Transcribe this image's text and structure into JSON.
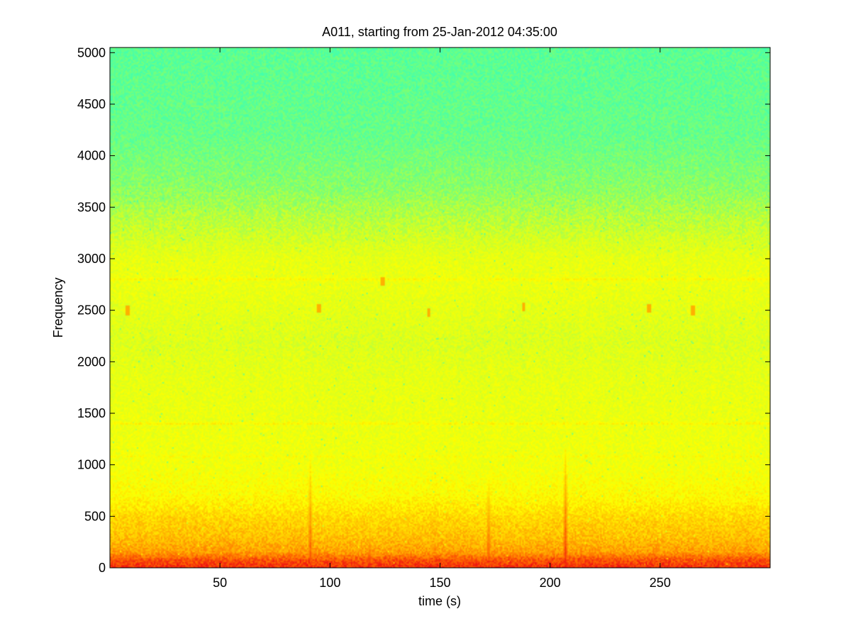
{
  "chart_data": {
    "type": "heatmap",
    "title": "A011, starting from 25-Jan-2012 04:35:00",
    "xlabel": "time (s)",
    "ylabel": "Frequency",
    "xlim": [
      0,
      300
    ],
    "ylim": [
      0,
      5050
    ],
    "x_ticks": [
      50,
      100,
      150,
      200,
      250
    ],
    "y_ticks": [
      0,
      500,
      1000,
      1500,
      2000,
      2500,
      3000,
      3500,
      4000,
      4500,
      5000
    ],
    "grid": false,
    "colormap": "jet (upper portion: cyan-green to yellow to red)",
    "colormap_stops": [
      "#40ffb0",
      "#80ff70",
      "#d8ff20",
      "#ffff00",
      "#ffc000",
      "#ff7000",
      "#ee1010"
    ],
    "intensity_profile": {
      "frequency": [
        0,
        80,
        150,
        300,
        500,
        700,
        1000,
        1400,
        1800,
        2200,
        2600,
        2800,
        3000,
        3300,
        3700,
        4200,
        5050
      ],
      "level": [
        0.95,
        0.88,
        0.74,
        0.66,
        0.6,
        0.5,
        0.44,
        0.42,
        0.4,
        0.36,
        0.4,
        0.42,
        0.4,
        0.3,
        0.18,
        0.1,
        0.07
      ]
    },
    "horizontal_bands": [
      {
        "frequency": 1400,
        "level": 0.52
      },
      {
        "frequency": 2800,
        "level": 0.5
      },
      {
        "frequency": 1080,
        "level": 0.48
      }
    ],
    "transient_events": [
      {
        "time": 5,
        "level": 0.95,
        "max_frequency": 130
      },
      {
        "time": 20,
        "level": 0.92,
        "max_frequency": 120
      },
      {
        "time": 35,
        "level": 0.9,
        "max_frequency": 110
      },
      {
        "time": 46,
        "level": 0.92,
        "max_frequency": 130
      },
      {
        "time": 68,
        "level": 0.9,
        "max_frequency": 120
      },
      {
        "time": 88,
        "level": 0.95,
        "max_frequency": 200
      },
      {
        "time": 91,
        "level": 0.93,
        "max_frequency": 1100
      },
      {
        "time": 95,
        "level": 0.92,
        "max_frequency": 250
      },
      {
        "time": 103,
        "level": 0.9,
        "max_frequency": 200
      },
      {
        "time": 110,
        "level": 0.92,
        "max_frequency": 150
      },
      {
        "time": 118,
        "level": 1.0,
        "max_frequency": 420
      },
      {
        "time": 135,
        "level": 0.92,
        "max_frequency": 120
      },
      {
        "time": 146,
        "level": 0.92,
        "max_frequency": 140
      },
      {
        "time": 172,
        "level": 0.95,
        "max_frequency": 900
      },
      {
        "time": 182,
        "level": 0.92,
        "max_frequency": 150
      },
      {
        "time": 195,
        "level": 0.92,
        "max_frequency": 150
      },
      {
        "time": 207,
        "level": 0.98,
        "max_frequency": 1150
      },
      {
        "time": 210,
        "level": 0.95,
        "max_frequency": 350
      },
      {
        "time": 216,
        "level": 0.93,
        "max_frequency": 200
      },
      {
        "time": 222,
        "level": 0.95,
        "max_frequency": 250
      },
      {
        "time": 228,
        "level": 0.92,
        "max_frequency": 180
      },
      {
        "time": 235,
        "level": 0.95,
        "max_frequency": 250
      },
      {
        "time": 245,
        "level": 0.93,
        "max_frequency": 200
      },
      {
        "time": 252,
        "level": 0.97,
        "max_frequency": 300
      },
      {
        "time": 256,
        "level": 0.95,
        "max_frequency": 250
      },
      {
        "time": 263,
        "level": 0.92,
        "max_frequency": 160
      },
      {
        "time": 290,
        "level": 0.92,
        "max_frequency": 200
      }
    ],
    "highlight_spots": [
      {
        "time": 8,
        "frequency": 2500
      },
      {
        "time": 95,
        "frequency": 2520
      },
      {
        "time": 145,
        "frequency": 2480
      },
      {
        "time": 188,
        "frequency": 2530
      },
      {
        "time": 245,
        "frequency": 2520
      },
      {
        "time": 265,
        "frequency": 2500
      },
      {
        "time": 124,
        "frequency": 2780
      }
    ]
  }
}
